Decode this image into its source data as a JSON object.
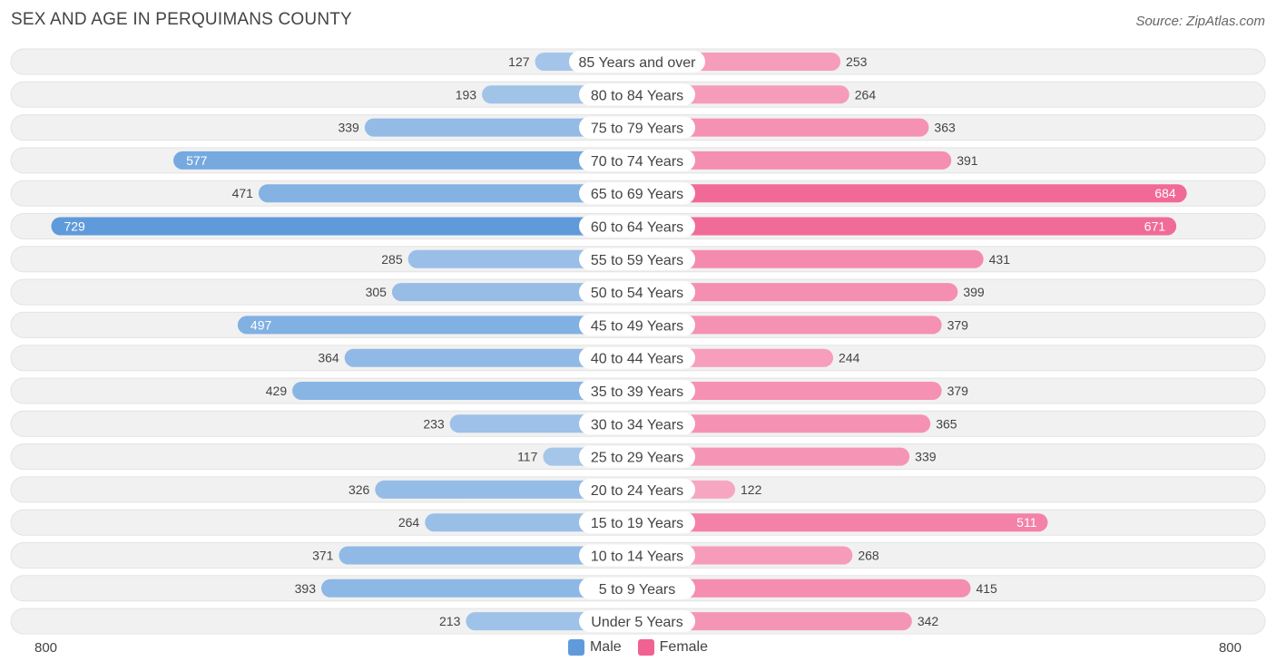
{
  "title": "SEX AND AGE IN PERQUIMANS COUNTY",
  "source": "Source: ZipAtlas.com",
  "axis": {
    "left_label": "800",
    "right_label": "800"
  },
  "legend": {
    "male": "Male",
    "female": "Female"
  },
  "colors": {
    "male_light": "#a9c8ea",
    "male_dark": "#5f9bdb",
    "female_light": "#f7aac4",
    "female_dark": "#f06292",
    "row_bg": "#f1f1f1",
    "row_border": "#e3e3e3"
  },
  "chart_data": {
    "type": "bar",
    "orientation": "horizontal-diverging",
    "title": "SEX AND AGE IN PERQUIMANS COUNTY",
    "xlim": [
      -800,
      800
    ],
    "categories": [
      "85 Years and over",
      "80 to 84 Years",
      "75 to 79 Years",
      "70 to 74 Years",
      "65 to 69 Years",
      "60 to 64 Years",
      "55 to 59 Years",
      "50 to 54 Years",
      "45 to 49 Years",
      "40 to 44 Years",
      "35 to 39 Years",
      "30 to 34 Years",
      "25 to 29 Years",
      "20 to 24 Years",
      "15 to 19 Years",
      "10 to 14 Years",
      "5 to 9 Years",
      "Under 5 Years"
    ],
    "series": [
      {
        "name": "Male",
        "values": [
          127,
          193,
          339,
          577,
          471,
          729,
          285,
          305,
          497,
          364,
          429,
          233,
          117,
          326,
          264,
          371,
          393,
          213
        ]
      },
      {
        "name": "Female",
        "values": [
          253,
          264,
          363,
          391,
          684,
          671,
          431,
          399,
          379,
          244,
          379,
          365,
          339,
          122,
          511,
          268,
          415,
          342
        ]
      }
    ]
  }
}
